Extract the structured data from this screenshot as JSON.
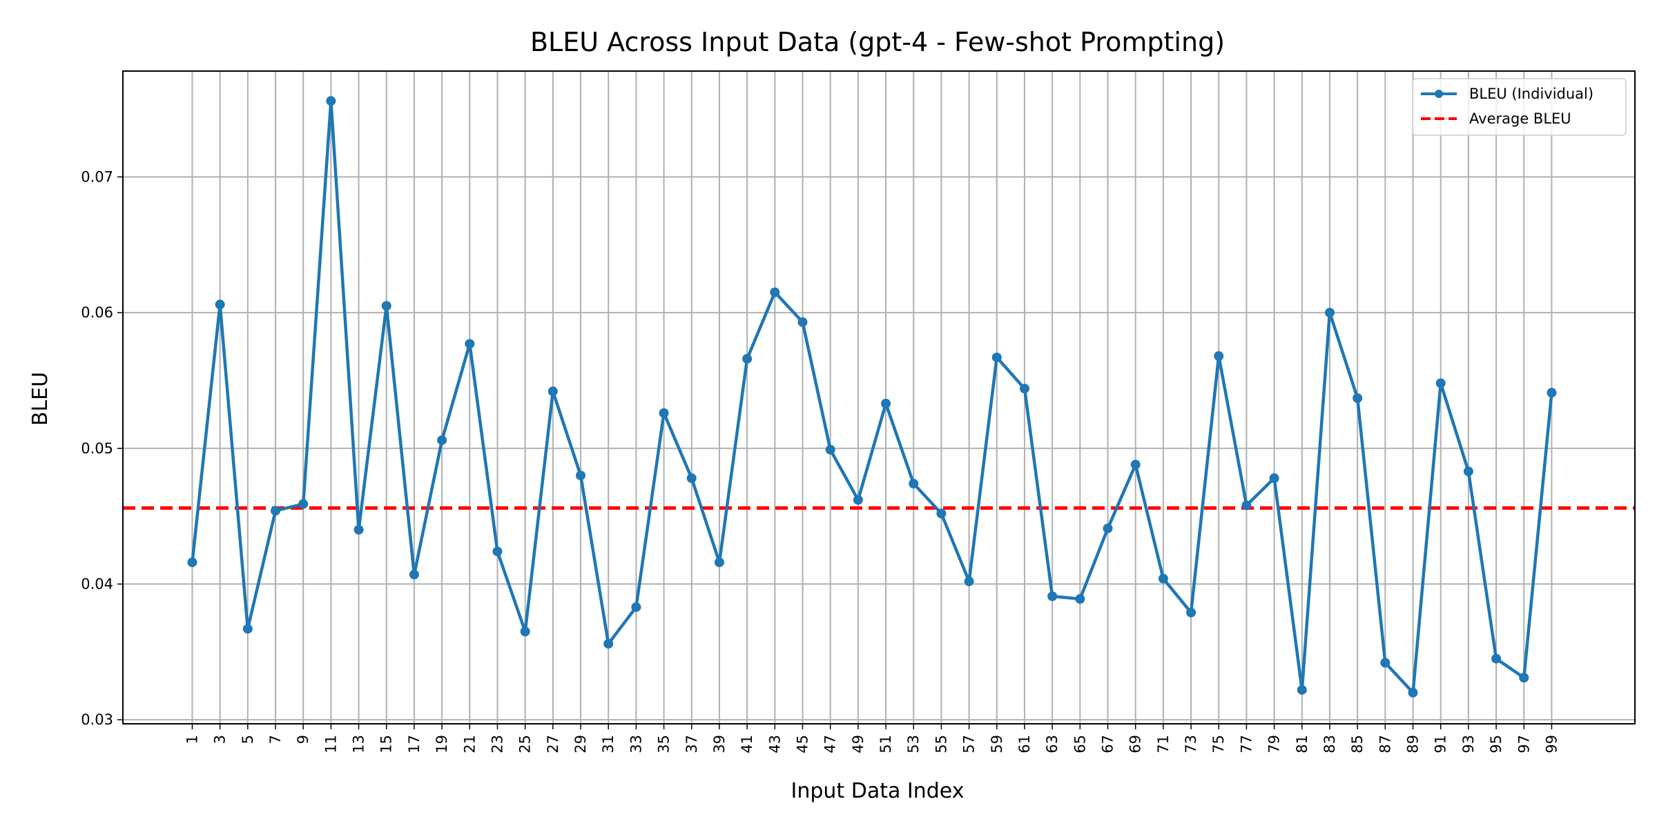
{
  "chart_data": {
    "type": "line",
    "title": "BLEU Across Input Data (gpt-4 - Few-shot Prompting)",
    "xlabel": "Input Data Index",
    "ylabel": "BLEU",
    "x": [
      1,
      3,
      5,
      7,
      9,
      11,
      13,
      15,
      17,
      19,
      21,
      23,
      25,
      27,
      29,
      31,
      33,
      35,
      37,
      39,
      41,
      43,
      45,
      47,
      49,
      51,
      53,
      55,
      57,
      59,
      61,
      63,
      65,
      67,
      69,
      71,
      73,
      75,
      77,
      79,
      81,
      83,
      85,
      87,
      89,
      91,
      93,
      95,
      97,
      99
    ],
    "xticks": [
      1,
      3,
      5,
      7,
      9,
      11,
      13,
      15,
      17,
      19,
      21,
      23,
      25,
      27,
      29,
      31,
      33,
      35,
      37,
      39,
      41,
      43,
      45,
      47,
      49,
      51,
      53,
      55,
      57,
      59,
      61,
      63,
      65,
      67,
      69,
      71,
      73,
      75,
      77,
      79,
      81,
      83,
      85,
      87,
      89,
      91,
      93,
      95,
      97,
      99
    ],
    "yticks": [
      0.03,
      0.04,
      0.05,
      0.06,
      0.07
    ],
    "ytick_labels": [
      "0.03",
      "0.04",
      "0.05",
      "0.06",
      "0.07"
    ],
    "xlim": [
      -4,
      105
    ],
    "ylim": [
      0.0297,
      0.0778
    ],
    "grid": true,
    "legend_position": "top-right",
    "series": [
      {
        "name": "BLEU (Individual)",
        "color": "#1f77b4",
        "style": "line-with-markers",
        "values": [
          0.0416,
          0.0606,
          0.0367,
          0.0454,
          0.0459,
          0.0756,
          0.044,
          0.0605,
          0.0407,
          0.0506,
          0.0577,
          0.0424,
          0.0365,
          0.0542,
          0.048,
          0.0356,
          0.0383,
          0.0526,
          0.0478,
          0.0416,
          0.0566,
          0.0615,
          0.0593,
          0.0499,
          0.0462,
          0.0533,
          0.0474,
          0.0452,
          0.0402,
          0.0567,
          0.0544,
          0.0391,
          0.0389,
          0.0441,
          0.0488,
          0.0404,
          0.0379,
          0.0568,
          0.0458,
          0.0478,
          0.0322,
          0.06,
          0.0537,
          0.0342,
          0.032,
          0.0548,
          0.0483,
          0.0345,
          0.0331,
          0.0541
        ]
      },
      {
        "name": "Average BLEU",
        "color": "#ff0000",
        "style": "dashed",
        "value": 0.0456
      }
    ]
  }
}
